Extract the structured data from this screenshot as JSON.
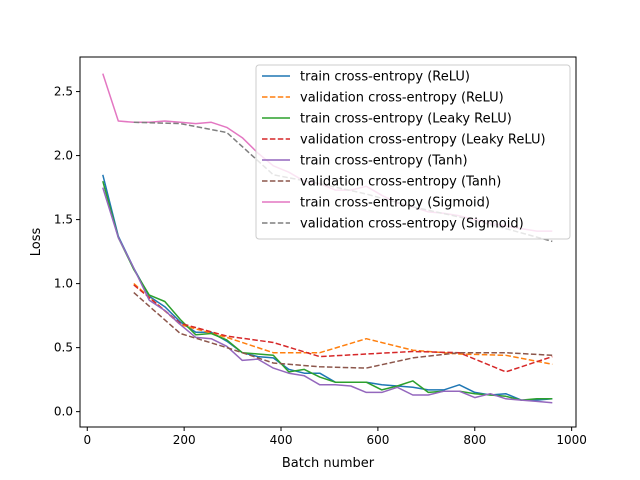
{
  "chart_data": {
    "type": "line",
    "xlabel": "Batch number",
    "ylabel": "Loss",
    "xlim": [
      -15,
      1009
    ],
    "ylim": [
      -0.12,
      2.77
    ],
    "xticks": [
      0,
      200,
      400,
      600,
      800,
      1000
    ],
    "yticks": [
      0.0,
      0.5,
      1.0,
      1.5,
      2.0,
      2.5
    ],
    "xtick_labels": [
      "0",
      "200",
      "400",
      "600",
      "800",
      "1000"
    ],
    "ytick_labels": [
      "0.0",
      "0.5",
      "1.0",
      "1.5",
      "2.0",
      "2.5"
    ],
    "grid": false,
    "legend_position": "upper-right",
    "series": [
      {
        "name": "train cross-entropy (ReLU)",
        "color": "#1f77b4",
        "style": "solid",
        "x": [
          32,
          64,
          96,
          128,
          160,
          192,
          224,
          256,
          288,
          320,
          352,
          384,
          416,
          448,
          480,
          512,
          544,
          576,
          608,
          640,
          672,
          704,
          736,
          768,
          800,
          832,
          864,
          896,
          928,
          960
        ],
        "y": [
          1.85,
          1.37,
          1.12,
          0.9,
          0.82,
          0.7,
          0.62,
          0.62,
          0.55,
          0.46,
          0.43,
          0.42,
          0.33,
          0.3,
          0.3,
          0.23,
          0.23,
          0.23,
          0.21,
          0.2,
          0.19,
          0.17,
          0.17,
          0.21,
          0.15,
          0.13,
          0.14,
          0.09,
          0.09,
          0.1
        ]
      },
      {
        "name": "validation cross-entropy (ReLU)",
        "color": "#ff7f0e",
        "style": "dashed",
        "x": [
          96,
          192,
          288,
          384,
          480,
          576,
          672,
          768,
          864,
          960
        ],
        "y": [
          1.0,
          0.68,
          0.58,
          0.46,
          0.46,
          0.57,
          0.48,
          0.45,
          0.44,
          0.37
        ]
      },
      {
        "name": "train cross-entropy (Leaky ReLU)",
        "color": "#2ca02c",
        "style": "solid",
        "x": [
          32,
          64,
          96,
          128,
          160,
          192,
          224,
          256,
          288,
          320,
          352,
          384,
          416,
          448,
          480,
          512,
          544,
          576,
          608,
          640,
          672,
          704,
          736,
          768,
          800,
          832,
          864,
          896,
          928,
          960
        ],
        "y": [
          1.8,
          1.36,
          1.11,
          0.91,
          0.86,
          0.72,
          0.6,
          0.61,
          0.56,
          0.46,
          0.45,
          0.44,
          0.31,
          0.33,
          0.27,
          0.23,
          0.23,
          0.23,
          0.17,
          0.2,
          0.24,
          0.15,
          0.16,
          0.16,
          0.14,
          0.13,
          0.12,
          0.09,
          0.1,
          0.1
        ]
      },
      {
        "name": "validation cross-entropy (Leaky ReLU)",
        "color": "#d62728",
        "style": "dashed",
        "x": [
          96,
          192,
          288,
          384,
          480,
          576,
          672,
          768,
          864,
          960
        ],
        "y": [
          0.99,
          0.69,
          0.59,
          0.54,
          0.43,
          0.45,
          0.47,
          0.46,
          0.31,
          0.43
        ]
      },
      {
        "name": "train cross-entropy (Tanh)",
        "color": "#9467bd",
        "style": "solid",
        "x": [
          32,
          64,
          96,
          128,
          160,
          192,
          224,
          256,
          288,
          320,
          352,
          384,
          416,
          448,
          480,
          512,
          544,
          576,
          608,
          640,
          672,
          704,
          736,
          768,
          800,
          832,
          864,
          896,
          928,
          960
        ],
        "y": [
          1.75,
          1.36,
          1.12,
          0.87,
          0.79,
          0.68,
          0.58,
          0.57,
          0.51,
          0.4,
          0.41,
          0.34,
          0.3,
          0.28,
          0.21,
          0.21,
          0.2,
          0.15,
          0.15,
          0.19,
          0.13,
          0.13,
          0.16,
          0.16,
          0.11,
          0.14,
          0.1,
          0.09,
          0.08,
          0.07
        ]
      },
      {
        "name": "validation cross-entropy (Tanh)",
        "color": "#8c564b",
        "style": "dashed",
        "x": [
          96,
          192,
          288,
          384,
          480,
          576,
          672,
          768,
          864,
          960
        ],
        "y": [
          0.93,
          0.61,
          0.5,
          0.38,
          0.35,
          0.34,
          0.42,
          0.46,
          0.46,
          0.44
        ]
      },
      {
        "name": "train cross-entropy (Sigmoid)",
        "color": "#e377c2",
        "style": "solid",
        "x": [
          32,
          64,
          96,
          128,
          160,
          192,
          224,
          256,
          288,
          320,
          352,
          384,
          416,
          448,
          480,
          512,
          544,
          576,
          608,
          640,
          672,
          704,
          736,
          768,
          800,
          832,
          864,
          896,
          928,
          960
        ],
        "y": [
          2.64,
          2.27,
          2.26,
          2.26,
          2.27,
          2.26,
          2.25,
          2.26,
          2.22,
          2.14,
          2.02,
          1.92,
          1.87,
          1.8,
          1.78,
          1.73,
          1.73,
          1.76,
          1.69,
          1.63,
          1.6,
          1.56,
          1.55,
          1.53,
          1.5,
          1.47,
          1.45,
          1.43,
          1.41,
          1.41
        ]
      },
      {
        "name": "validation cross-entropy (Sigmoid)",
        "color": "#7f7f7f",
        "style": "dashed",
        "x": [
          96,
          192,
          288,
          384,
          480,
          576,
          672,
          768,
          864,
          960
        ],
        "y": [
          2.26,
          2.25,
          2.18,
          1.85,
          1.78,
          1.7,
          1.6,
          1.52,
          1.43,
          1.33
        ]
      }
    ]
  }
}
